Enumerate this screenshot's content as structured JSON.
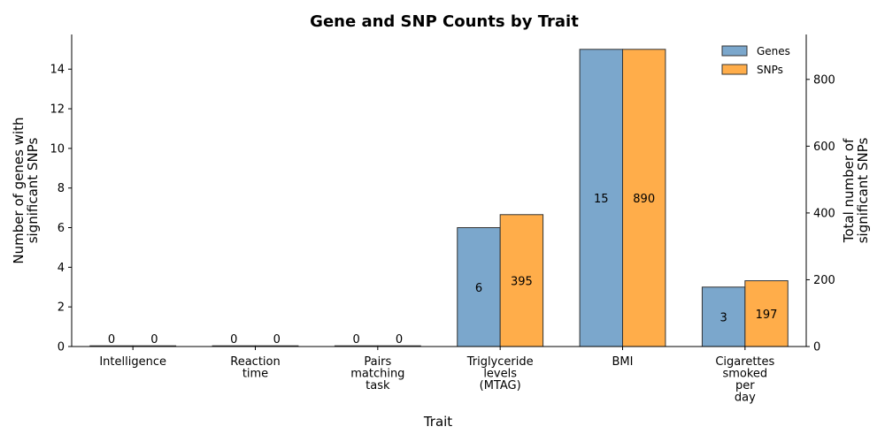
{
  "chart_data": {
    "type": "bar",
    "title": "Gene and SNP Counts by Trait",
    "xlabel": "Trait",
    "ylabel_left": "Number of genes with significant SNPs",
    "ylabel_right": "Total number of significant SNPs",
    "categories": [
      "Intelligence",
      "Reaction time",
      "Pairs matching task",
      "Triglyceride levels (MTAG)",
      "BMI",
      "Cigarettes smoked per day"
    ],
    "category_lines": [
      [
        "Intelligence"
      ],
      [
        "Reaction",
        "time"
      ],
      [
        "Pairs",
        "matching",
        "task"
      ],
      [
        "Triglyceride",
        "levels",
        "(MTAG)"
      ],
      [
        "BMI"
      ],
      [
        "Cigarettes",
        "smoked",
        "per",
        "day"
      ]
    ],
    "series": [
      {
        "name": "Genes",
        "axis": "left",
        "color": "#7BA7CC",
        "values": [
          0,
          0,
          0,
          6,
          15,
          3
        ]
      },
      {
        "name": "SNPs",
        "axis": "right",
        "color": "#FFAD4A",
        "values": [
          0,
          0,
          0,
          395,
          890,
          197
        ]
      }
    ],
    "ylim_left": [
      0,
      15.75
    ],
    "ylim_right": [
      0,
      934.5
    ],
    "yticks_left": [
      0,
      2,
      4,
      6,
      8,
      10,
      12,
      14
    ],
    "yticks_right": [
      0,
      200,
      400,
      600,
      800
    ],
    "left_label_color": "#4682B4",
    "right_label_color": "#FF8C00",
    "legend_position": "top-right",
    "grid": false
  }
}
